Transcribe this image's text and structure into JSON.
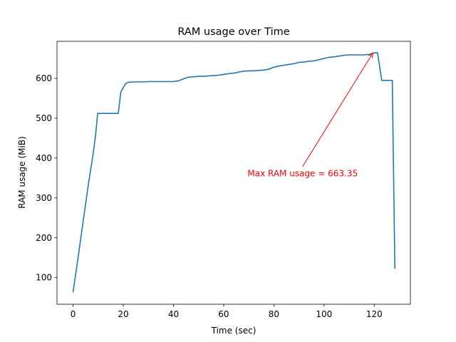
{
  "chart_data": {
    "type": "line",
    "title": "RAM usage over Time",
    "xlabel": "Time (sec)",
    "ylabel": "RAM usage (MiB)",
    "xlim": [
      -6.4,
      134.4
    ],
    "ylim": [
      33,
      693
    ],
    "xticks": [
      0,
      20,
      40,
      60,
      80,
      100,
      120
    ],
    "yticks": [
      100,
      200,
      300,
      400,
      500,
      600
    ],
    "grid": false,
    "legend": "none",
    "series": [
      {
        "color": "#1f77b4",
        "x": [
          0,
          2,
          4,
          6,
          8,
          9,
          9.8,
          12,
          14,
          16,
          18,
          19,
          20,
          21,
          22,
          24,
          26,
          28,
          30,
          32,
          34,
          36,
          38,
          40,
          42,
          44,
          46,
          48,
          50,
          52,
          54,
          56,
          58,
          60,
          62,
          64,
          66,
          68,
          70,
          72,
          74,
          76,
          78,
          80,
          82,
          84,
          86,
          88,
          90,
          92,
          94,
          96,
          98,
          100,
          102,
          104,
          106,
          108,
          110,
          112,
          114,
          116,
          118,
          119.4,
          120.3,
          121.3,
          123,
          125,
          127.2,
          128.2
        ],
        "y": [
          63,
          150,
          240,
          330,
          410,
          460,
          512,
          512,
          512,
          512,
          512,
          565,
          577,
          587,
          590,
          591,
          591,
          591,
          592,
          592,
          592,
          592,
          592,
          592,
          594,
          599,
          603,
          604,
          605,
          605,
          606,
          607,
          608,
          610,
          612,
          613,
          616,
          618,
          619,
          619,
          620,
          621,
          623,
          628,
          631,
          633,
          635,
          637,
          640,
          641,
          643,
          644,
          647,
          650,
          653,
          654,
          656,
          658,
          659,
          659,
          659,
          659,
          660,
          663.35,
          664,
          664,
          595,
          595,
          595,
          122
        ]
      }
    ],
    "annotation": {
      "text": "Max RAM usage = 663.35",
      "x": 119.4,
      "y": 663.35,
      "text_x": 69.5,
      "text_y": 361,
      "color": "#ff0000"
    }
  }
}
